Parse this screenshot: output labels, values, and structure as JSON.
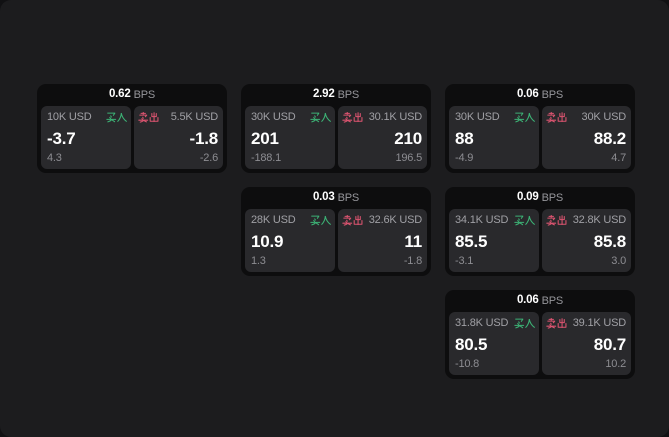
{
  "app": {
    "description": "dark trading quote board with bid/ask tiles",
    "colors": {
      "backdrop": "#111113",
      "surface": "#1c1c1e",
      "card": "#0d0d0e",
      "panel": "#29292c",
      "buy_green": "#3cb275",
      "sell_red": "#dd5470",
      "text_primary": "#ffffff",
      "text_muted": "#a0a0a5"
    }
  },
  "labels": {
    "buy": "买入",
    "sell": "卖出",
    "bps_unit": "BPS"
  },
  "cards": [
    {
      "row": 1,
      "col": 1,
      "bps": "0.62",
      "buy": {
        "size": "10K USD",
        "price": "-3.7",
        "delta": "4.3"
      },
      "sell": {
        "size": "5.5K USD",
        "price": "-1.8",
        "delta": "-2.6"
      }
    },
    {
      "row": 1,
      "col": 2,
      "bps": "2.92",
      "buy": {
        "size": "30K USD",
        "price": "201",
        "delta": "-188.1"
      },
      "sell": {
        "size": "30.1K USD",
        "price": "210",
        "delta": "196.5"
      }
    },
    {
      "row": 1,
      "col": 3,
      "bps": "0.06",
      "buy": {
        "size": "30K USD",
        "price": "88",
        "delta": "-4.9"
      },
      "sell": {
        "size": "30K USD",
        "price": "88.2",
        "delta": "4.7"
      }
    },
    {
      "row": 2,
      "col": 2,
      "bps": "0.03",
      "buy": {
        "size": "28K USD",
        "price": "10.9",
        "delta": "1.3"
      },
      "sell": {
        "size": "32.6K USD",
        "price": "11",
        "delta": "-1.8"
      }
    },
    {
      "row": 2,
      "col": 3,
      "bps": "0.09",
      "buy": {
        "size": "34.1K USD",
        "price": "85.5",
        "delta": "-3.1"
      },
      "sell": {
        "size": "32.8K USD",
        "price": "85.8",
        "delta": "3.0"
      }
    },
    {
      "row": 3,
      "col": 3,
      "bps": "0.06",
      "buy": {
        "size": "31.8K USD",
        "price": "80.5",
        "delta": "-10.8"
      },
      "sell": {
        "size": "39.1K USD",
        "price": "80.7",
        "delta": "10.2"
      }
    }
  ]
}
